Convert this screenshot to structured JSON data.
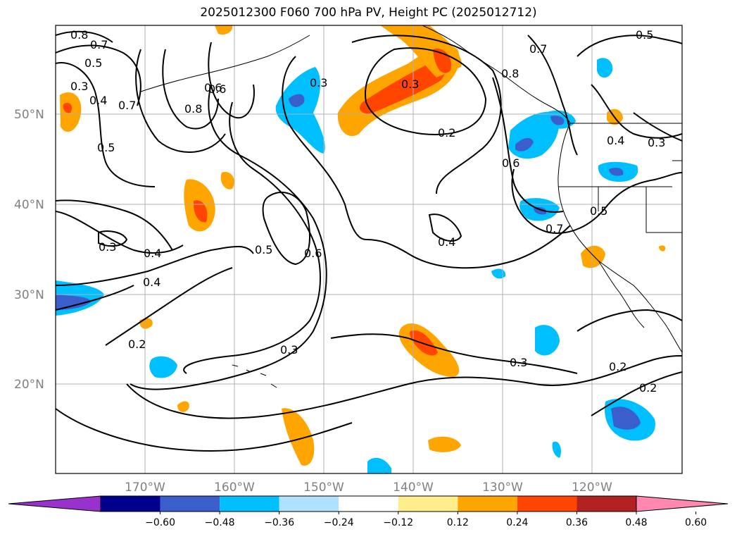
{
  "title": "2025012300 F060 700 hPa PV, Height PC (2025012712)",
  "latitude_labels": [
    "50°N",
    "40°N",
    "30°N",
    "20°N"
  ],
  "longitude_labels": [
    "170°W",
    "160°W",
    "150°W",
    "140°W",
    "130°W",
    "120°W"
  ],
  "contour_labels": [
    "0.8",
    "0.7",
    "0.3",
    "0.4",
    "0.7",
    "0.5",
    "0.8",
    "0.6",
    "0.3",
    "0.3",
    "0.2",
    "0.6",
    "0.5",
    "0.4",
    "0.3",
    "0.4",
    "0.3",
    "0.4",
    "0.5",
    "0.6",
    "0.4",
    "0.2",
    "0.3",
    "0.3",
    "0.5",
    "0.7",
    "0.2",
    "0.2",
    "0.8",
    "0.6",
    "0.7",
    "0.5"
  ],
  "colorbar": {
    "ticks": [
      "−0.60",
      "−0.48",
      "−0.36",
      "−0.24",
      "−0.12",
      "0.12",
      "0.24",
      "0.36",
      "0.48",
      "0.60"
    ],
    "colors": [
      "#9932cc",
      "#00008b",
      "#3a5fcd",
      "#00bfff",
      "#b0e2ff",
      "#ffffff",
      "#ffec8b",
      "#ffa500",
      "#ff4500",
      "#b22222",
      "#ff88b0"
    ]
  },
  "colors": {
    "grid": "#b0b0b0",
    "contour": "#000000",
    "frame": "#000000",
    "neg_blue": "#00bfff",
    "pos_orange": "#ffa500"
  }
}
